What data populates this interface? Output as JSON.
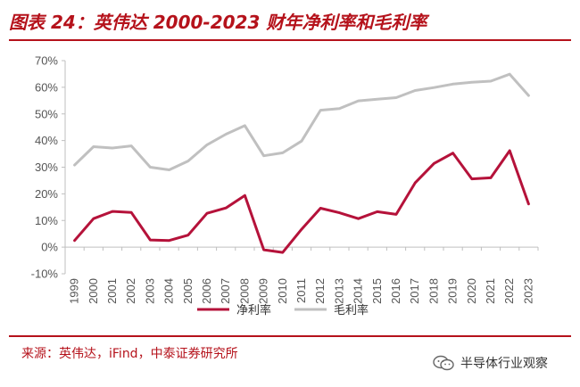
{
  "title": "图表 24：英伟达 2000-2023 财年净利率和毛利率",
  "source": "来源：英伟达，iFind，中泰证券研究所",
  "watermark": "半导体行业观察",
  "colors": {
    "accent": "#b5121b",
    "net_margin": "#b5123a",
    "gross_margin": "#c0c0c0"
  },
  "chart_data": {
    "type": "line",
    "title": "",
    "categories": [
      "1999",
      "2000",
      "2001",
      "2002",
      "2003",
      "2004",
      "2005",
      "2006",
      "2007",
      "2008",
      "2009",
      "2010",
      "2011",
      "2012",
      "2013",
      "2014",
      "2015",
      "2016",
      "2017",
      "2018",
      "2019",
      "2020",
      "2021",
      "2022",
      "2023"
    ],
    "ylim": [
      -10,
      70
    ],
    "yticks": [
      -10,
      0,
      10,
      20,
      30,
      40,
      50,
      60,
      70
    ],
    "ytick_labels": [
      "-10%",
      "0%",
      "10%",
      "20%",
      "30%",
      "40%",
      "50%",
      "60%",
      "70%"
    ],
    "grid": false,
    "legend": "bottom-center",
    "series": [
      {
        "name": "净利率",
        "color": "#b5123a",
        "values": [
          2.5,
          10.7,
          13.4,
          13.0,
          2.7,
          2.5,
          4.5,
          12.7,
          14.7,
          19.4,
          -1.0,
          -2.0,
          6.7,
          14.6,
          12.9,
          10.7,
          13.3,
          12.3,
          24.1,
          31.4,
          35.3,
          25.6,
          26.0,
          36.2,
          16.2
        ]
      },
      {
        "name": "毛利率",
        "color": "#c0c0c0",
        "values": [
          30.8,
          37.7,
          37.2,
          38.0,
          30.0,
          29.0,
          32.3,
          38.4,
          42.4,
          45.6,
          34.3,
          35.4,
          39.8,
          51.4,
          52.0,
          54.9,
          55.5,
          56.1,
          58.8,
          59.9,
          61.2,
          61.9,
          62.3,
          64.9,
          56.9
        ]
      }
    ]
  }
}
